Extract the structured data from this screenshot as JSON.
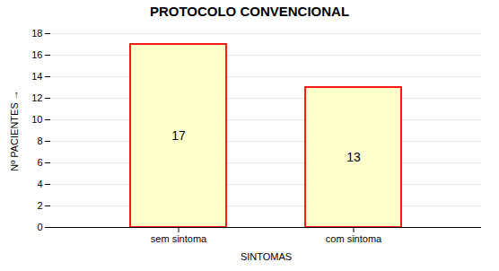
{
  "chart_data": {
    "type": "bar",
    "title": "PROTOCOLO CONVENCIONAL",
    "categories": [
      "sem sintoma",
      "com sintoma"
    ],
    "values": [
      17,
      13
    ],
    "color": "#FFFFCC",
    "xlabel": "SINTOMAS",
    "ylabel": "Nº PACIENTES",
    "ylim": [
      0,
      18
    ],
    "yticks": [
      0,
      2,
      4,
      6,
      8,
      10,
      12,
      14,
      16,
      18
    ],
    "grid": true,
    "data_labels": true
  }
}
